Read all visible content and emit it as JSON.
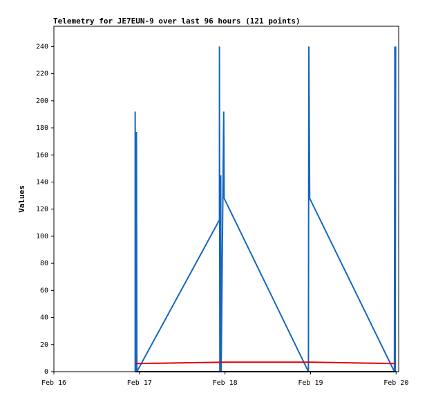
{
  "chart_data": {
    "type": "line",
    "title": "Telemetry for JE7EUN-9 over last 96 hours (121 points)",
    "y_label": "Values",
    "xlim": [
      0,
      4.03
    ],
    "xticks": [
      {
        "value": 0,
        "label": "Feb 16"
      },
      {
        "value": 1,
        "label": "Feb 17"
      },
      {
        "value": 2,
        "label": "Feb 18"
      },
      {
        "value": 3,
        "label": "Feb 19"
      },
      {
        "value": 4,
        "label": "Feb 20"
      }
    ],
    "ylim": [
      0,
      255
    ],
    "yticks": [
      0,
      20,
      40,
      60,
      80,
      100,
      120,
      140,
      160,
      180,
      200,
      220,
      240
    ],
    "series": [
      {
        "color": "#1565c0",
        "x": [
          0.95,
          0.95,
          0.955,
          0.965,
          0.97,
          1.935,
          1.935,
          1.94,
          1.95,
          1.955,
          1.985,
          1.99,
          2.975,
          2.98,
          2.99,
          3.98,
          3.985,
          3.99,
          3.995
        ],
        "values": [
          0,
          192,
          0,
          177,
          0,
          112,
          240,
          0,
          145,
          0,
          192,
          128,
          0,
          240,
          128,
          0,
          240,
          0,
          240
        ]
      },
      {
        "color": "#e00000",
        "x": [
          0.95,
          2.0,
          3.0,
          4.0
        ],
        "values": [
          6,
          7,
          7,
          6
        ]
      },
      {
        "color": "#000000",
        "x": [
          0.95,
          4.0
        ],
        "values": [
          0,
          0
        ]
      }
    ]
  }
}
